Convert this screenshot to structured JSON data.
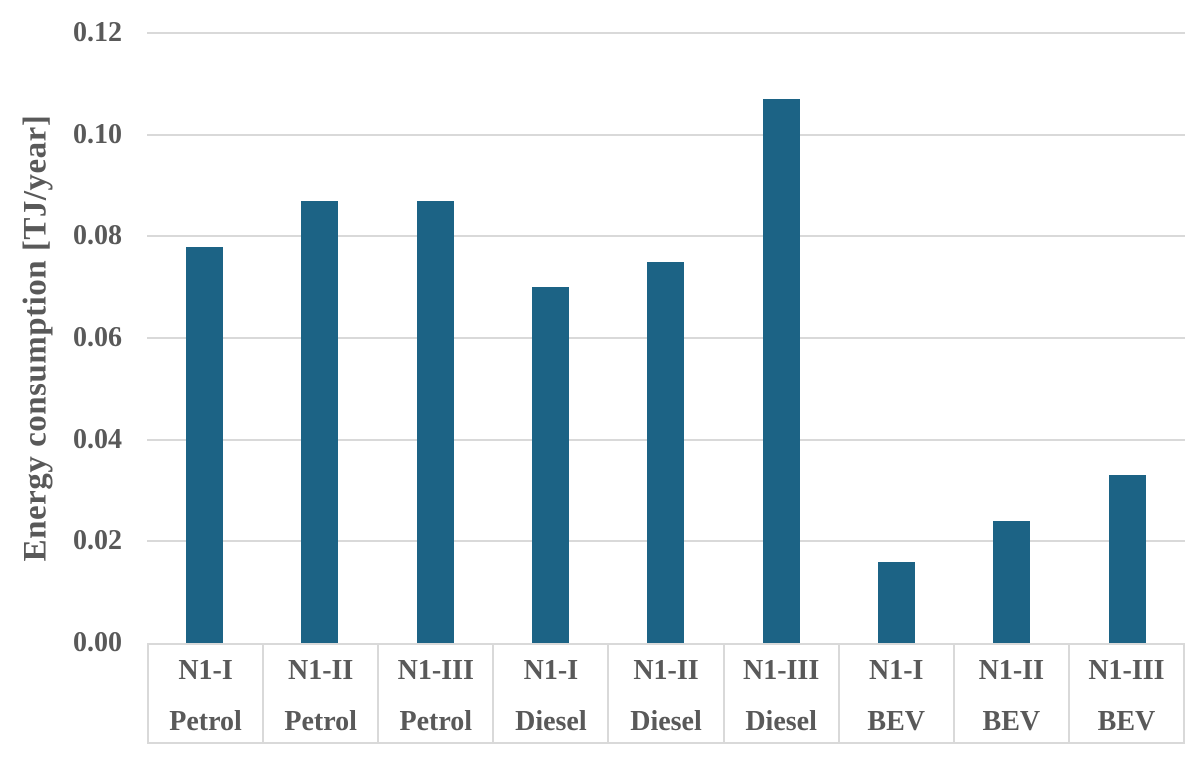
{
  "chart_data": {
    "type": "bar",
    "title": "",
    "xlabel": "",
    "ylabel": "Energy consumption [TJ/year]",
    "ylim": [
      0,
      0.12
    ],
    "ytick_step": 0.02,
    "ytick_labels": [
      "0.00",
      "0.02",
      "0.04",
      "0.06",
      "0.08",
      "0.10",
      "0.12"
    ],
    "categories": [
      "N1-I",
      "N1-II",
      "N1-III",
      "N1-I",
      "N1-II",
      "N1-III",
      "N1-I",
      "N1-II",
      "N1-III"
    ],
    "groups": [
      "Petrol",
      "Petrol",
      "Petrol",
      "Diesel",
      "Diesel",
      "Diesel",
      "BEV",
      "BEV",
      "BEV"
    ],
    "values": [
      0.078,
      0.087,
      0.087,
      0.07,
      0.075,
      0.107,
      0.016,
      0.024,
      0.033
    ],
    "grid": true,
    "legend": false,
    "layout": {
      "legend_position": "none",
      "bar_gap": "wide",
      "category_boxes": true
    },
    "colors": {
      "bar": "#1C6385",
      "text": "#595959",
      "gridline": "#D9D9D9",
      "background": "#FFFFFF"
    }
  }
}
